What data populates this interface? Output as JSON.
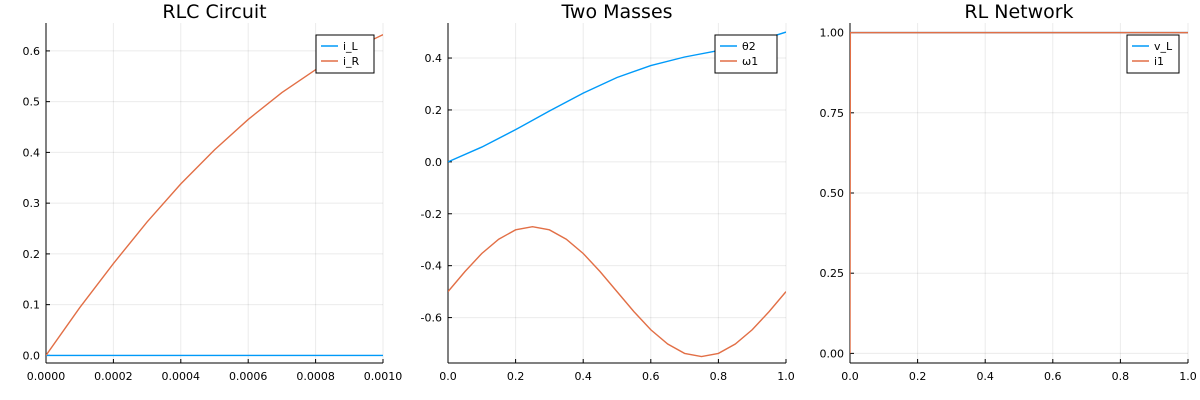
{
  "colors": {
    "series1": "#009af9",
    "series2": "#e26f46"
  },
  "chart_data": [
    {
      "type": "line",
      "title": "RLC Circuit",
      "xlim": [
        0,
        0.001
      ],
      "ylim": [
        -0.015,
        0.655
      ],
      "xticks": [
        0,
        0.0002,
        0.0004,
        0.0006,
        0.0008,
        0.001
      ],
      "xtick_labels": [
        "0.0000",
        "0.0002",
        "0.0004",
        "0.0006",
        "0.0008",
        "0.0010"
      ],
      "yticks": [
        0,
        0.1,
        0.2,
        0.3,
        0.4,
        0.5,
        0.6
      ],
      "ytick_labels": [
        "0.0",
        "0.1",
        "0.2",
        "0.3",
        "0.4",
        "0.5",
        "0.6"
      ],
      "grid": true,
      "legend_position": "top-right",
      "series": [
        {
          "name": "i_L",
          "x": [
            0,
            0.0001,
            0.0002,
            0.0003,
            0.0004,
            0.0005,
            0.0006,
            0.0007,
            0.0008,
            0.0009,
            0.001
          ],
          "y": [
            0.0,
            0.0,
            0.0,
            0.0,
            0.0,
            0.0,
            0.0,
            0.0,
            0.0,
            0.0,
            0.0
          ]
        },
        {
          "name": "i_R",
          "x": [
            0,
            0.0001,
            0.0002,
            0.0003,
            0.0004,
            0.0005,
            0.0006,
            0.0007,
            0.0008,
            0.0009,
            0.001
          ],
          "y": [
            0.0,
            0.094,
            0.181,
            0.263,
            0.338,
            0.405,
            0.465,
            0.518,
            0.563,
            0.6,
            0.632
          ]
        }
      ]
    },
    {
      "type": "line",
      "title": "Two Masses",
      "xlim": [
        0,
        1
      ],
      "ylim": [
        -0.775,
        0.535
      ],
      "xticks": [
        0,
        0.2,
        0.4,
        0.6,
        0.8,
        1.0
      ],
      "xtick_labels": [
        "0.0",
        "0.2",
        "0.4",
        "0.6",
        "0.8",
        "1.0"
      ],
      "yticks": [
        -0.6,
        -0.4,
        -0.2,
        0,
        0.2,
        0.4
      ],
      "ytick_labels": [
        "-0.6",
        "-0.4",
        "-0.2",
        "0.0",
        "0.2",
        "0.4"
      ],
      "grid": true,
      "legend_position": "top-right",
      "series": [
        {
          "name": "θ2",
          "x": [
            0,
            0.1,
            0.2,
            0.3,
            0.4,
            0.5,
            0.6,
            0.7,
            0.8,
            0.9,
            1.0
          ],
          "y": [
            0.0,
            0.057,
            0.124,
            0.196,
            0.265,
            0.325,
            0.371,
            0.404,
            0.429,
            0.459,
            0.5
          ]
        },
        {
          "name": "ω1",
          "x": [
            0,
            0.05,
            0.1,
            0.15,
            0.2,
            0.25,
            0.3,
            0.35,
            0.4,
            0.45,
            0.5,
            0.55,
            0.6,
            0.65,
            0.7,
            0.75,
            0.8,
            0.85,
            0.9,
            0.95,
            1.0
          ],
          "y": [
            -0.5,
            -0.423,
            -0.353,
            -0.298,
            -0.262,
            -0.25,
            -0.262,
            -0.298,
            -0.353,
            -0.423,
            -0.5,
            -0.577,
            -0.647,
            -0.702,
            -0.738,
            -0.75,
            -0.738,
            -0.702,
            -0.647,
            -0.577,
            -0.5
          ]
        }
      ]
    },
    {
      "type": "line",
      "title": "RL Network",
      "xlim": [
        0,
        1
      ],
      "ylim": [
        -0.03,
        1.03
      ],
      "xticks": [
        0,
        0.2,
        0.4,
        0.6,
        0.8,
        1.0
      ],
      "xtick_labels": [
        "0.0",
        "0.2",
        "0.4",
        "0.6",
        "0.8",
        "1.0"
      ],
      "yticks": [
        0,
        0.25,
        0.5,
        0.75,
        1.0
      ],
      "ytick_labels": [
        "0.00",
        "0.25",
        "0.50",
        "0.75",
        "1.00"
      ],
      "grid": true,
      "legend_position": "top-right",
      "series": [
        {
          "name": "v_L",
          "x": [
            0,
            0.001,
            0.2,
            0.4,
            0.6,
            0.8,
            1.0
          ],
          "y": [
            1.0,
            1.0,
            1.0,
            1.0,
            1.0,
            1.0,
            1.0
          ]
        },
        {
          "name": "i1",
          "x": [
            0,
            0.001,
            0.2,
            0.4,
            0.6,
            0.8,
            1.0
          ],
          "y": [
            0.0,
            1.0,
            1.0,
            1.0,
            1.0,
            1.0,
            1.0
          ]
        }
      ]
    }
  ]
}
